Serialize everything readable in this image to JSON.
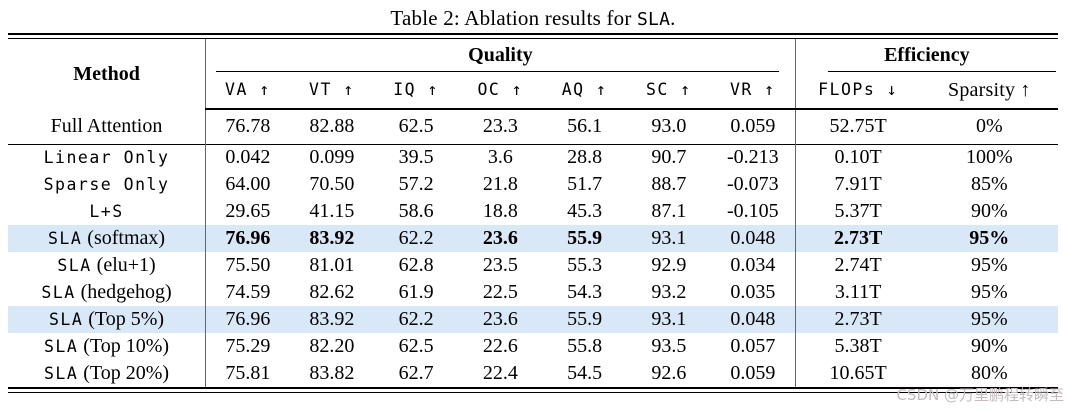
{
  "caption": {
    "prefix": "Table 2: Ablation results for ",
    "code": "SLA",
    "suffix": "."
  },
  "header": {
    "method": "Method",
    "quality_group": "Quality",
    "efficiency_group": "Efficiency",
    "quality_columns": [
      "VA ↑",
      "VT ↑",
      "IQ ↑",
      "OC ↑",
      "AQ ↑",
      "SC ↑",
      "VR ↑"
    ],
    "flops": "FLOPs ↓",
    "sparsity": "Sparsity ↑"
  },
  "rows": [
    {
      "m2": "Full Attention",
      "v": [
        "76.78",
        "82.88",
        "62.5",
        "23.3",
        "56.1",
        "93.0",
        "0.059",
        "52.75T",
        "0%"
      ]
    },
    {
      "m1": "Linear Only",
      "v": [
        "0.042",
        "0.099",
        "39.5",
        "3.6",
        "28.8",
        "90.7",
        "-0.213",
        "0.10T",
        "100%"
      ]
    },
    {
      "m1": "Sparse Only",
      "v": [
        "64.00",
        "70.50",
        "57.2",
        "21.8",
        "51.7",
        "88.7",
        "-0.073",
        "7.91T",
        "85%"
      ]
    },
    {
      "m1": "L+S",
      "v": [
        "29.65",
        "41.15",
        "58.6",
        "18.8",
        "45.3",
        "87.1",
        "-0.105",
        "5.37T",
        "90%"
      ]
    },
    {
      "m1": "SLA",
      "m2": " (softmax)",
      "v": [
        "76.96",
        "83.92",
        "62.2",
        "23.6",
        "55.9",
        "93.1",
        "0.048",
        "2.73T",
        "95%"
      ]
    },
    {
      "m1": "SLA",
      "m2": " (elu+1)",
      "v": [
        "75.50",
        "81.01",
        "62.8",
        "23.5",
        "55.3",
        "92.9",
        "0.034",
        "2.74T",
        "95%"
      ]
    },
    {
      "m1": "SLA",
      "m2": " (hedgehog)",
      "v": [
        "74.59",
        "82.62",
        "61.9",
        "22.5",
        "54.3",
        "93.2",
        "0.035",
        "3.11T",
        "95%"
      ]
    },
    {
      "m1": "SLA",
      "m2": " (Top 5%)",
      "v": [
        "76.96",
        "83.92",
        "62.2",
        "23.6",
        "55.9",
        "93.1",
        "0.048",
        "2.73T",
        "95%"
      ]
    },
    {
      "m1": "SLA",
      "m2": " (Top 10%)",
      "v": [
        "75.29",
        "82.20",
        "62.5",
        "22.6",
        "55.8",
        "93.5",
        "0.057",
        "5.38T",
        "90%"
      ]
    },
    {
      "m1": "SLA",
      "m2": " (Top 20%)",
      "v": [
        "75.81",
        "83.82",
        "62.7",
        "22.4",
        "54.5",
        "92.6",
        "0.059",
        "10.65T",
        "80%"
      ]
    }
  ],
  "highlight_color": "#d9e8f6",
  "watermark": "CSDN @万里鹏程转瞬至"
}
